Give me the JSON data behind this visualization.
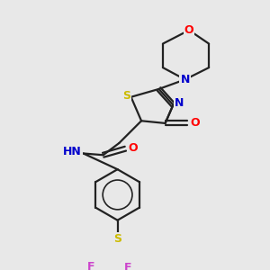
{
  "bg_color": "#e8e8e8",
  "atom_colors": {
    "N": "#0000cc",
    "O": "#ff0000",
    "S": "#ccbb00",
    "F": "#cc44cc",
    "H": "#000000"
  },
  "bond_color": "#222222",
  "bond_width": 1.6,
  "fig_w": 3.0,
  "fig_h": 3.0,
  "dpi": 100
}
